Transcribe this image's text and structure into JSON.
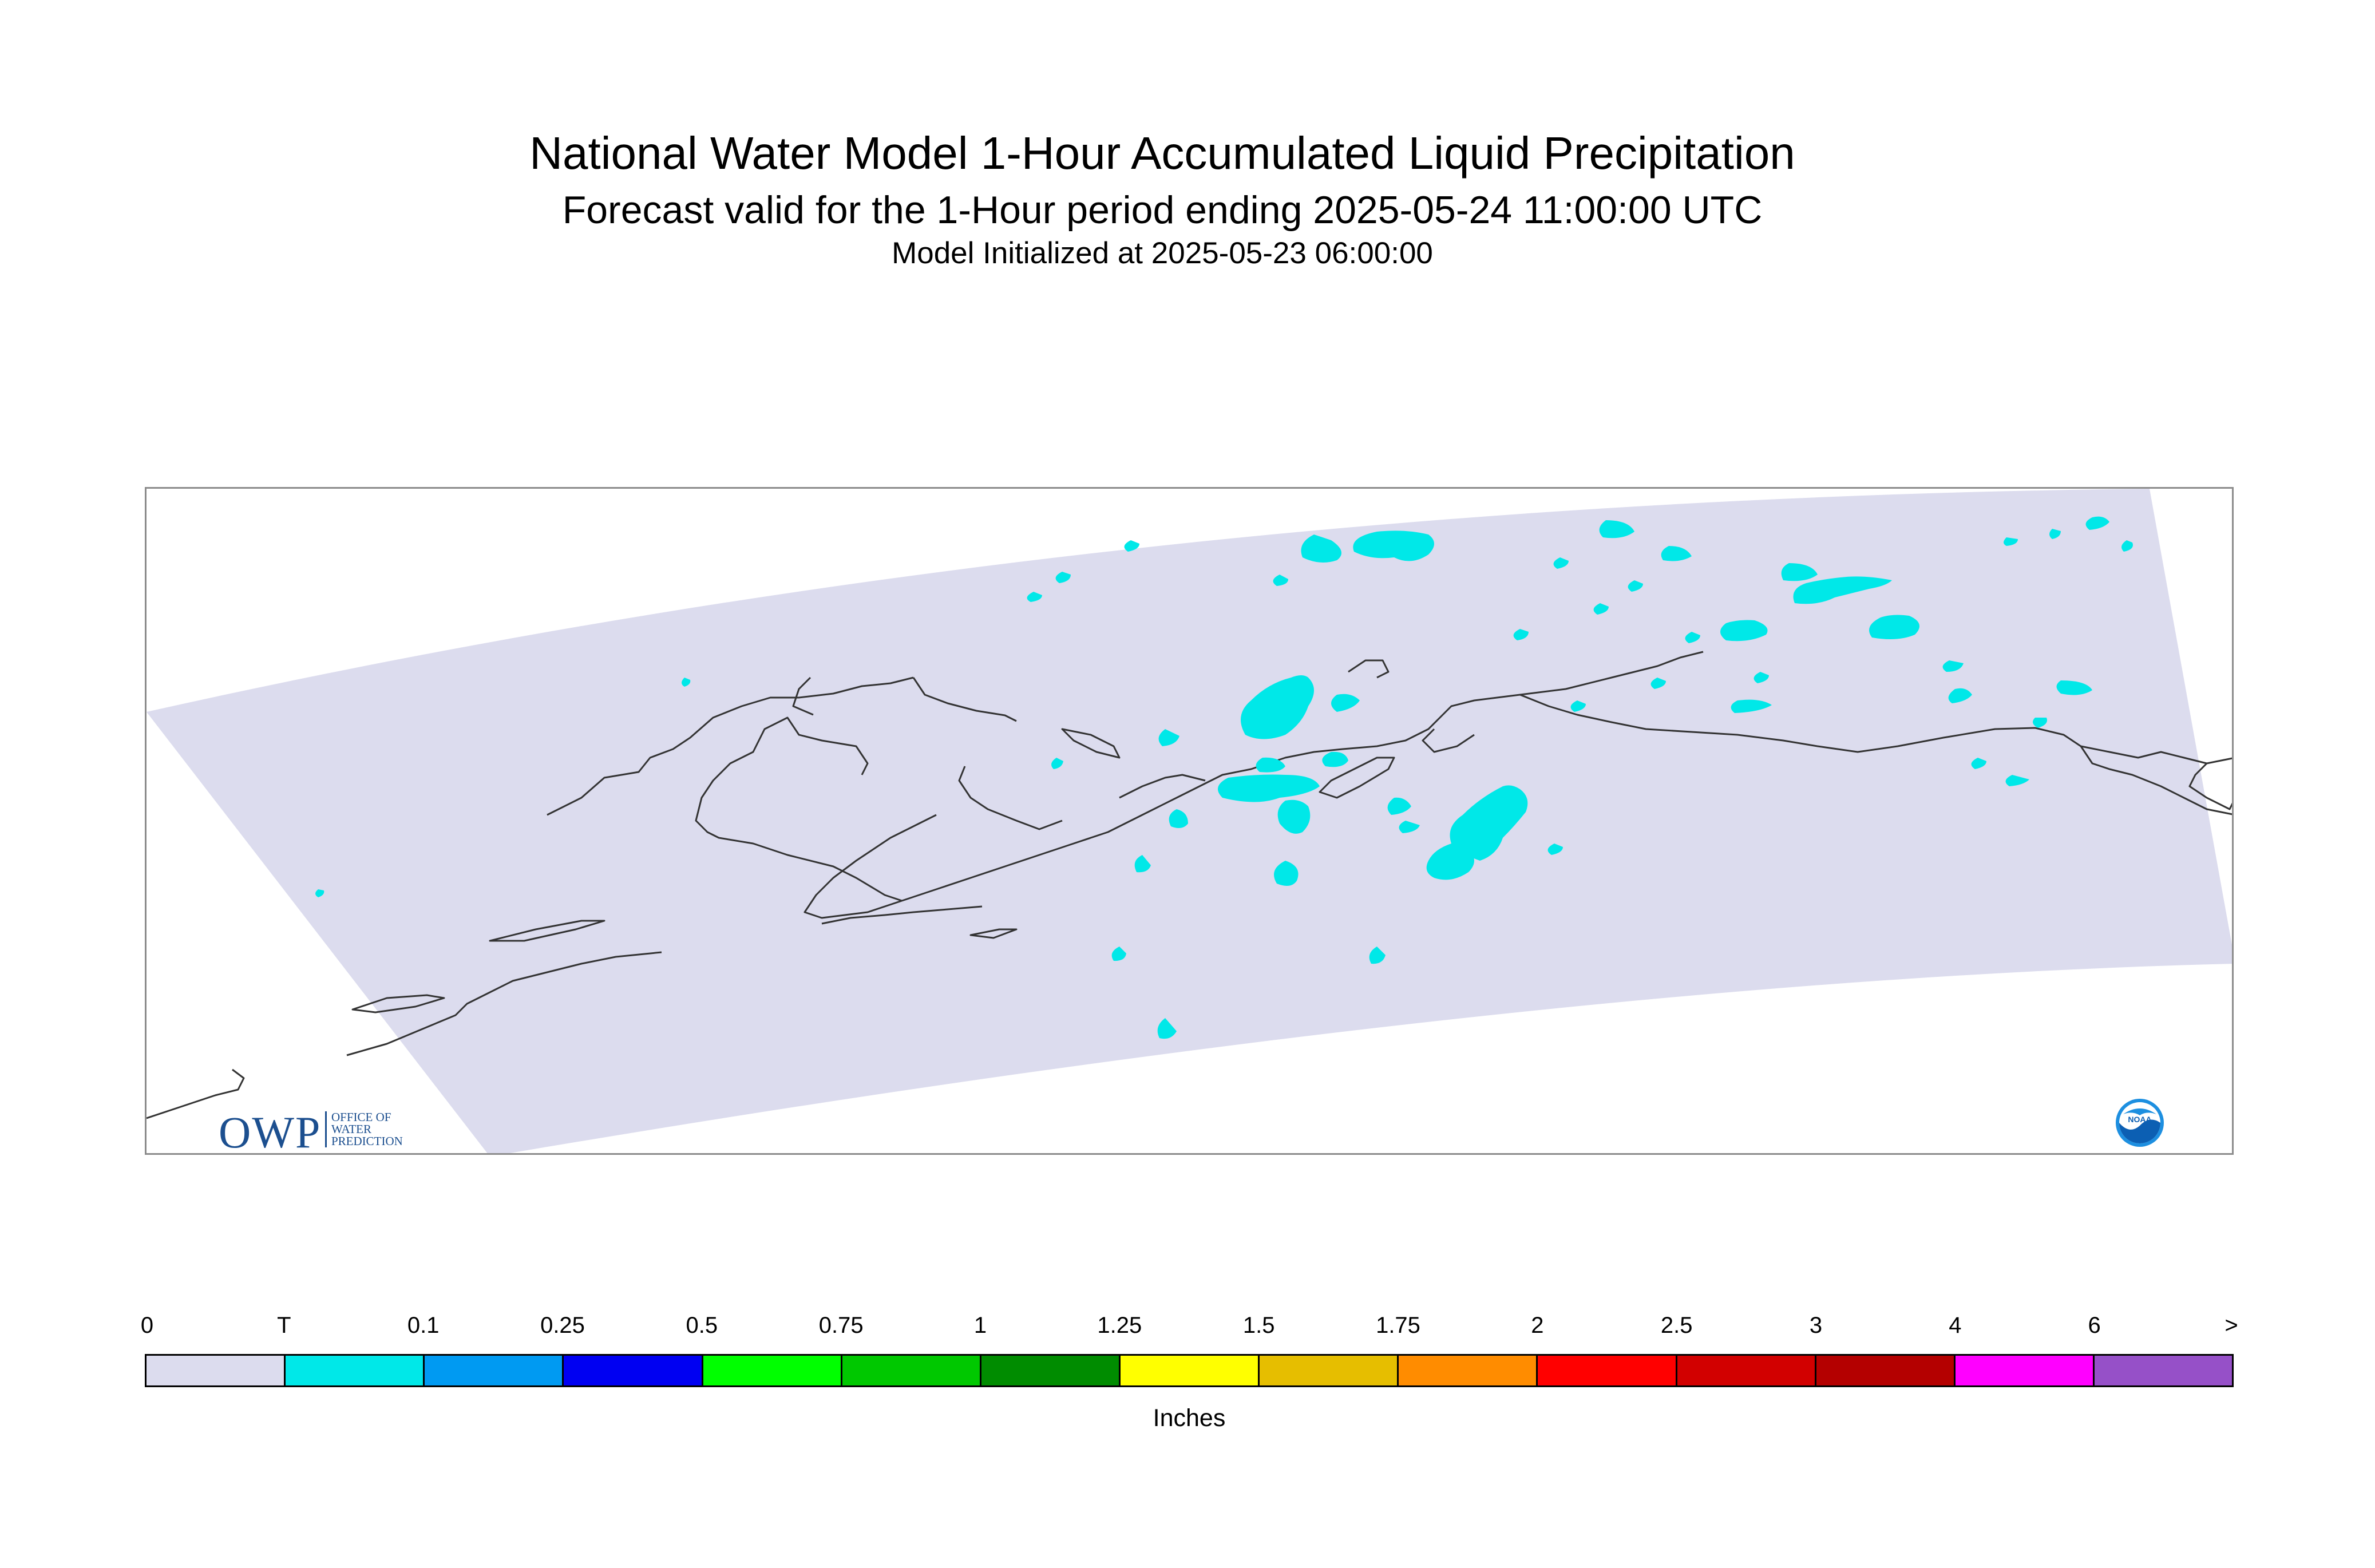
{
  "header": {
    "title": "National Water Model 1-Hour Accumulated Liquid Precipitation",
    "subtitle": "Forecast valid for the 1-Hour period ending 2025-05-24 11:00:00 UTC",
    "init": "Model Initialized at 2025-05-23 06:00:00"
  },
  "map": {
    "domain_color": "#dcdcee",
    "precip_color": "#00e8e8",
    "coastline_color": "#333333",
    "precip_category": "T"
  },
  "logos": {
    "owp_letters": "OWP",
    "owp_line1": "OFFICE OF",
    "owp_line2": "WATER",
    "owp_line3": "PREDICTION",
    "noaa": "NOAA"
  },
  "legend": {
    "units": "Inches",
    "ticks": [
      "0",
      "T",
      "0.1",
      "0.25",
      "0.5",
      "0.75",
      "1",
      "1.25",
      "1.5",
      "1.75",
      "2",
      "2.5",
      "3",
      "4",
      "6",
      ">"
    ],
    "colors": [
      "#dcdcee",
      "#00e8e8",
      "#009af2",
      "#0000f2",
      "#00ff00",
      "#00c800",
      "#008c00",
      "#ffff00",
      "#e6be00",
      "#ff8c00",
      "#ff0000",
      "#d20000",
      "#b40000",
      "#ff00ff",
      "#9650c8"
    ]
  }
}
